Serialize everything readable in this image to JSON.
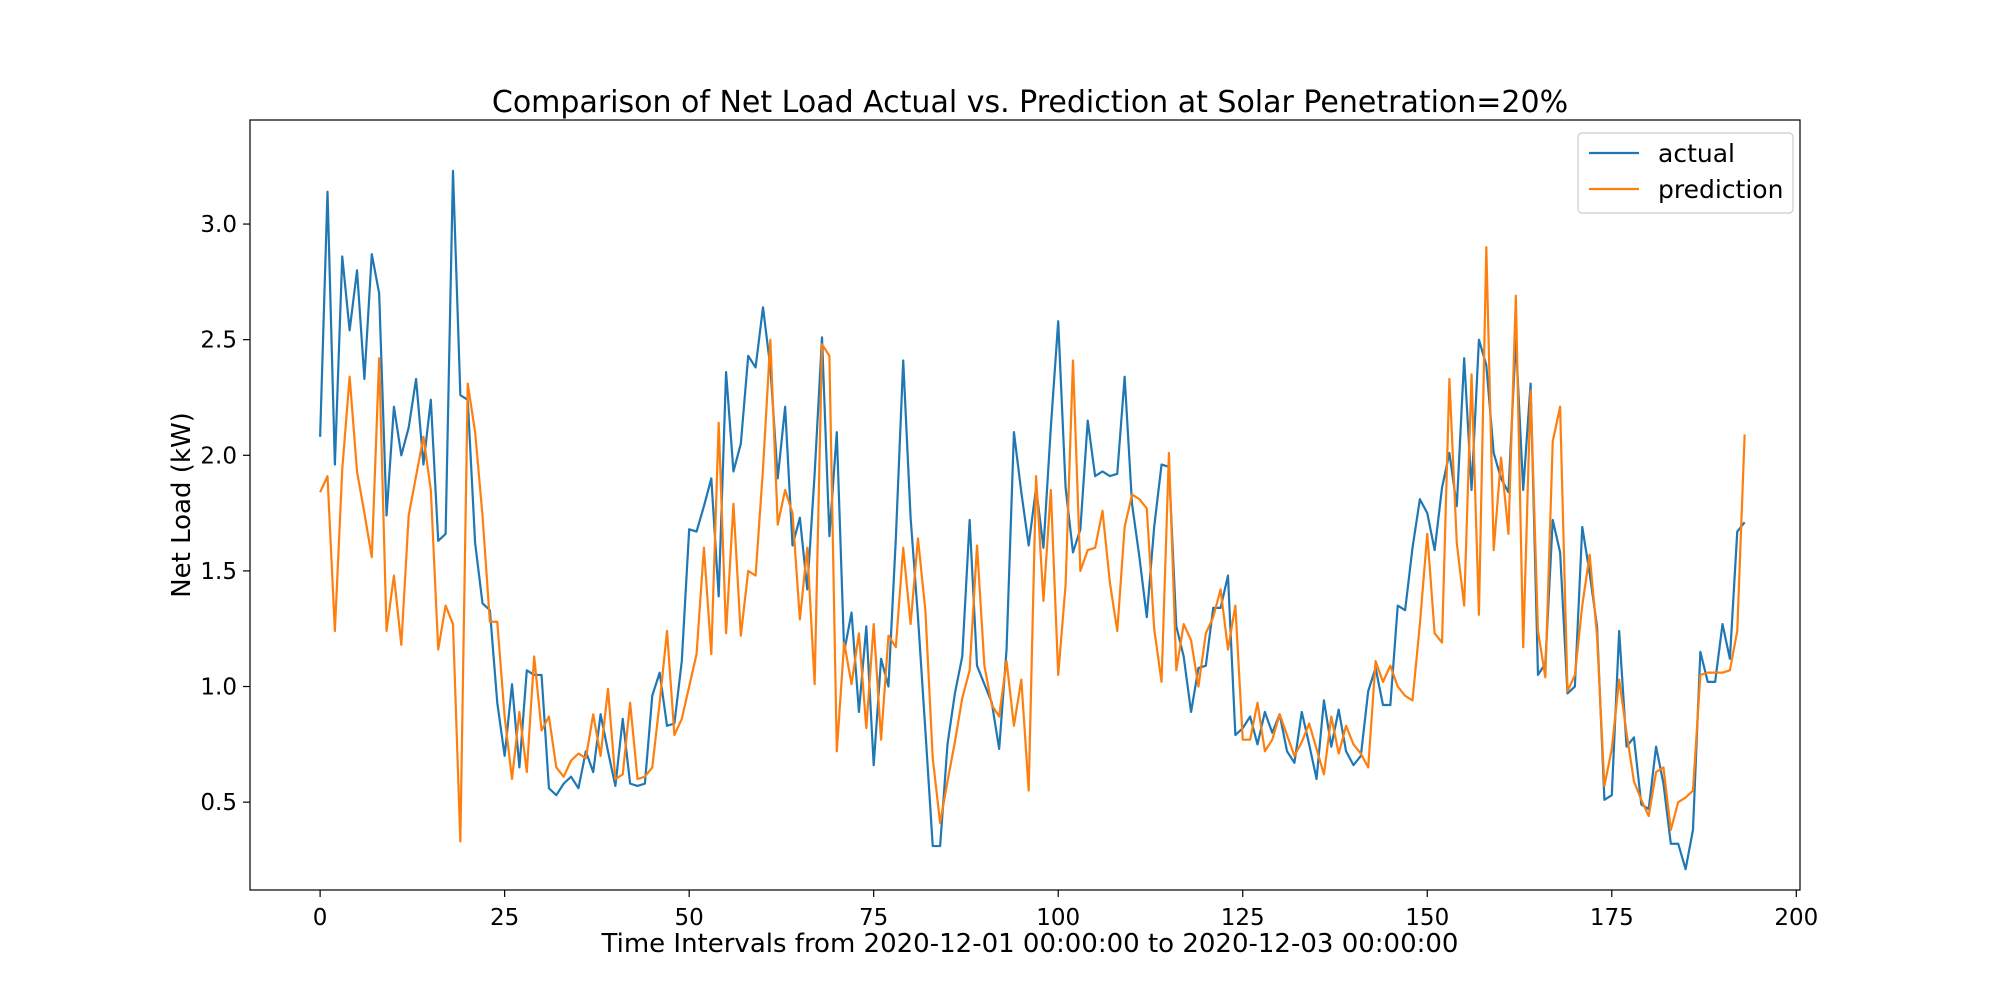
{
  "chart_data": {
    "type": "line",
    "title": "Comparison of Net Load Actual vs. Prediction at Solar Penetration=20%",
    "xlabel": "Time Intervals from 2020-12-01 00:00:00 to 2020-12-03 00:00:00",
    "ylabel": "Net Load (kW)",
    "xlim": [
      -9.5,
      200.5
    ],
    "ylim": [
      0.12,
      3.45
    ],
    "xticks": [
      0,
      25,
      50,
      75,
      100,
      125,
      150,
      175,
      200
    ],
    "yticks": [
      0.5,
      1.0,
      1.5,
      2.0,
      2.5,
      3.0
    ],
    "xtick_labels": [
      "0",
      "25",
      "50",
      "75",
      "100",
      "125",
      "150",
      "175",
      "200"
    ],
    "ytick_labels": [
      "0.5",
      "1.0",
      "1.5",
      "2.0",
      "2.5",
      "3.0"
    ],
    "grid": false,
    "legend_position": "top-right",
    "colors": {
      "actual": "#1f77b4",
      "prediction": "#ff7f0e"
    },
    "series": [
      {
        "name": "actual",
        "values": [
          2.08,
          3.14,
          1.96,
          2.86,
          2.54,
          2.8,
          2.33,
          2.87,
          2.7,
          1.74,
          2.21,
          2.0,
          2.12,
          2.33,
          1.96,
          2.24,
          1.63,
          1.66,
          3.23,
          2.26,
          2.24,
          1.62,
          1.36,
          1.33,
          0.93,
          0.7,
          1.01,
          0.65,
          1.07,
          1.05,
          1.05,
          0.56,
          0.53,
          0.58,
          0.61,
          0.56,
          0.72,
          0.63,
          0.88,
          0.72,
          0.57,
          0.86,
          0.58,
          0.57,
          0.58,
          0.96,
          1.06,
          0.83,
          0.84,
          1.11,
          1.68,
          1.67,
          1.78,
          1.9,
          1.39,
          2.36,
          1.93,
          2.05,
          2.43,
          2.38,
          2.64,
          2.38,
          1.9,
          2.21,
          1.61,
          1.73,
          1.42,
          1.92,
          2.51,
          1.65,
          2.1,
          1.15,
          1.32,
          0.89,
          1.26,
          0.66,
          1.12,
          1.0,
          1.64,
          2.41,
          1.73,
          1.3,
          0.81,
          0.31,
          0.31,
          0.75,
          0.97,
          1.13,
          1.72,
          1.09,
          1.01,
          0.93,
          0.73,
          1.16,
          2.1,
          1.84,
          1.61,
          1.86,
          1.6,
          2.12,
          2.58,
          1.86,
          1.58,
          1.68,
          2.15,
          1.91,
          1.93,
          1.91,
          1.92,
          2.34,
          1.79,
          1.56,
          1.3,
          1.69,
          1.96,
          1.95,
          1.26,
          1.13,
          0.89,
          1.08,
          1.09,
          1.34,
          1.34,
          1.48,
          0.79,
          0.82,
          0.87,
          0.75,
          0.89,
          0.8,
          0.88,
          0.72,
          0.67,
          0.89,
          0.75,
          0.6,
          0.94,
          0.74,
          0.9,
          0.72,
          0.66,
          0.7,
          0.98,
          1.08,
          0.92,
          0.92,
          1.35,
          1.33,
          1.6,
          1.81,
          1.75,
          1.59,
          1.86,
          2.01,
          1.78,
          2.42,
          1.85,
          2.5,
          2.39,
          2.01,
          1.9,
          1.84,
          2.5,
          1.85,
          2.31,
          1.05,
          1.1,
          1.72,
          1.58,
          0.97,
          1.0,
          1.69,
          1.49,
          1.26,
          0.51,
          0.53,
          1.24,
          0.74,
          0.78,
          0.49,
          0.47,
          0.74,
          0.58,
          0.32,
          0.32,
          0.21,
          0.38,
          1.15,
          1.02,
          1.02,
          1.27,
          1.12,
          1.67,
          1.71
        ]
      },
      {
        "name": "prediction",
        "values": [
          1.84,
          1.91,
          1.24,
          1.94,
          2.34,
          1.93,
          1.75,
          1.56,
          2.42,
          1.24,
          1.48,
          1.18,
          1.74,
          1.91,
          2.08,
          1.85,
          1.16,
          1.35,
          1.27,
          0.33,
          2.31,
          2.1,
          1.74,
          1.28,
          1.28,
          0.87,
          0.6,
          0.89,
          0.63,
          1.13,
          0.81,
          0.87,
          0.65,
          0.61,
          0.68,
          0.71,
          0.69,
          0.88,
          0.7,
          0.99,
          0.6,
          0.62,
          0.93,
          0.6,
          0.61,
          0.65,
          0.93,
          1.24,
          0.79,
          0.86,
          1.0,
          1.14,
          1.6,
          1.14,
          2.14,
          1.23,
          1.79,
          1.22,
          1.5,
          1.48,
          1.94,
          2.5,
          1.7,
          1.85,
          1.75,
          1.29,
          1.6,
          1.01,
          2.48,
          2.43,
          0.72,
          1.19,
          1.01,
          1.23,
          0.82,
          1.27,
          0.77,
          1.22,
          1.17,
          1.6,
          1.27,
          1.64,
          1.33,
          0.69,
          0.41,
          0.59,
          0.76,
          0.95,
          1.07,
          1.61,
          1.09,
          0.92,
          0.87,
          1.11,
          0.83,
          1.03,
          0.55,
          1.91,
          1.37,
          1.85,
          1.05,
          1.44,
          2.41,
          1.5,
          1.59,
          1.6,
          1.76,
          1.45,
          1.24,
          1.69,
          1.83,
          1.81,
          1.77,
          1.25,
          1.02,
          2.01,
          1.07,
          1.27,
          1.2,
          1.0,
          1.23,
          1.3,
          1.42,
          1.16,
          1.35,
          0.77,
          0.77,
          0.93,
          0.72,
          0.77,
          0.88,
          0.79,
          0.7,
          0.76,
          0.84,
          0.73,
          0.62,
          0.87,
          0.71,
          0.83,
          0.75,
          0.71,
          0.65,
          1.11,
          1.02,
          1.09,
          1.0,
          0.96,
          0.94,
          1.27,
          1.66,
          1.23,
          1.19,
          2.33,
          1.62,
          1.35,
          2.35,
          1.31,
          2.9,
          1.59,
          1.99,
          1.66,
          2.69,
          1.17,
          2.28,
          1.24,
          1.04,
          2.06,
          2.21,
          0.98,
          1.05,
          1.35,
          1.57,
          1.22,
          0.57,
          0.73,
          1.03,
          0.8,
          0.59,
          0.51,
          0.44,
          0.63,
          0.65,
          0.38,
          0.5,
          0.52,
          0.55,
          1.05,
          1.06,
          1.06,
          1.06,
          1.07,
          1.24,
          2.09
        ]
      }
    ]
  }
}
